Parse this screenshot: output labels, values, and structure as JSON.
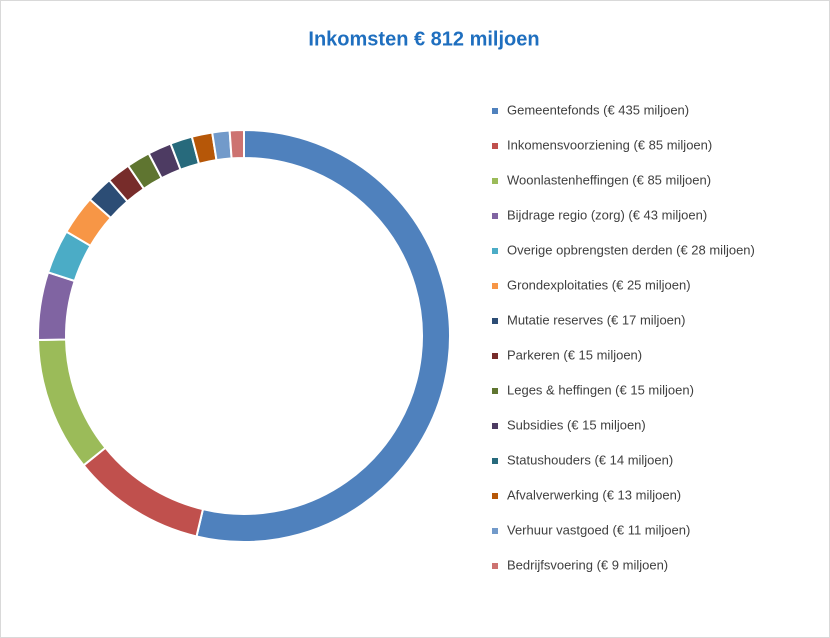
{
  "chart_data": {
    "type": "donut",
    "title": "Inkomsten € 812 miljoen",
    "categories": [
      "Gemeentefonds (€ 435 miljoen)",
      "Inkomensvoorziening (€ 85 miljoen)",
      "Woonlastenheffingen (€ 85 miljoen)",
      "Bijdrage regio (zorg) (€ 43 miljoen)",
      "Overige opbrengsten derden (€ 28 miljoen)",
      "Grondexploitaties (€ 25 miljoen)",
      "Mutatie reserves (€ 17 miljoen)",
      "Parkeren (€ 15 miljoen)",
      "Leges & heffingen (€ 15 miljoen)",
      "Subsidies (€ 15 miljoen)",
      "Statushouders (€ 14 miljoen)",
      "Afvalverwerking (€ 13 miljoen)",
      "Verhuur vastgoed (€ 11 miljoen)",
      "Bedrijfsvoering (€ 9 miljoen)"
    ],
    "values": [
      435,
      85,
      85,
      43,
      28,
      25,
      17,
      15,
      15,
      15,
      14,
      13,
      11,
      9
    ],
    "colors": [
      "#4f81bd",
      "#c0504d",
      "#9bbb59",
      "#8064a2",
      "#4bacc6",
      "#f79646",
      "#2c4d75",
      "#772c2a",
      "#5f7530",
      "#4d3b62",
      "#276a7c",
      "#b65708",
      "#729aca",
      "#cd7371"
    ],
    "legend": "right"
  }
}
